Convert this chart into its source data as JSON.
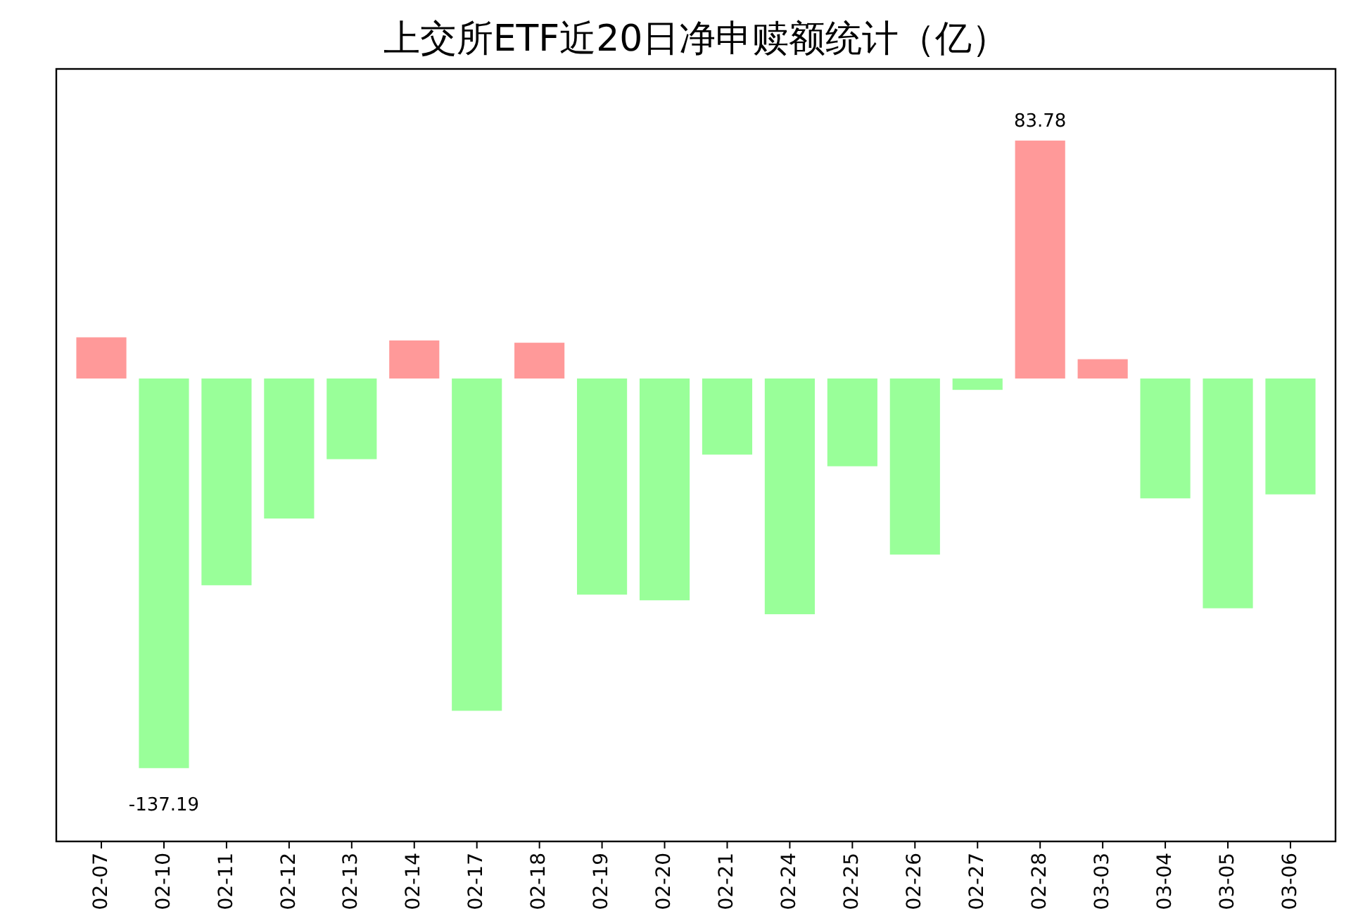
{
  "chart_data": {
    "type": "bar",
    "title": "上交所ETF近20日净申赎额统计（亿）",
    "categories": [
      "02-07",
      "02-10",
      "02-11",
      "02-12",
      "02-13",
      "02-14",
      "02-17",
      "02-18",
      "02-19",
      "02-20",
      "02-21",
      "02-24",
      "02-25",
      "02-26",
      "02-27",
      "02-28",
      "03-03",
      "03-04",
      "03-05",
      "03-06"
    ],
    "values": [
      14.5,
      -137.19,
      -72.8,
      -49.3,
      -28.4,
      13.4,
      -117.0,
      12.6,
      -76.1,
      -78.1,
      -26.8,
      -83.0,
      -30.9,
      -62.0,
      -4.0,
      83.78,
      6.8,
      -42.2,
      -80.9,
      -40.8
    ],
    "colors": [
      "#ff9999",
      "#99ff99",
      "#99ff99",
      "#99ff99",
      "#99ff99",
      "#ff9999",
      "#99ff99",
      "#ff9999",
      "#99ff99",
      "#99ff99",
      "#99ff99",
      "#99ff99",
      "#99ff99",
      "#99ff99",
      "#99ff99",
      "#ff9999",
      "#ff9999",
      "#99ff99",
      "#99ff99",
      "#99ff99"
    ],
    "value_labels": [
      null,
      "-137.19",
      null,
      null,
      null,
      null,
      null,
      null,
      null,
      null,
      null,
      null,
      null,
      null,
      null,
      "83.78",
      null,
      null,
      null,
      null
    ],
    "ylim": [
      -163,
      109
    ],
    "tick_labels": "x"
  }
}
